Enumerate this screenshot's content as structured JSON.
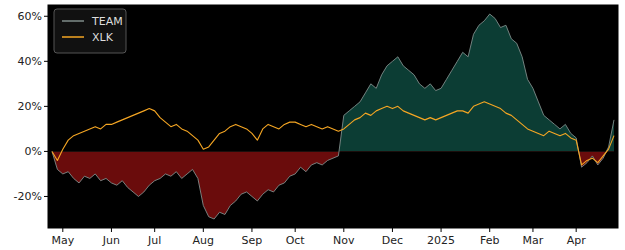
{
  "chart_data": {
    "type": "line",
    "categories": [
      null,
      null,
      "May",
      null,
      null,
      null,
      null,
      null,
      null,
      null,
      null,
      "Jun",
      null,
      null,
      null,
      null,
      null,
      null,
      null,
      "Jul",
      null,
      null,
      null,
      null,
      null,
      null,
      null,
      null,
      "Aug",
      null,
      null,
      null,
      null,
      null,
      null,
      null,
      null,
      "Sep",
      null,
      null,
      null,
      null,
      null,
      null,
      null,
      "Oct",
      null,
      null,
      null,
      null,
      null,
      null,
      null,
      null,
      "Nov",
      null,
      null,
      null,
      null,
      null,
      null,
      null,
      null,
      "Dec",
      null,
      null,
      null,
      null,
      null,
      null,
      null,
      null,
      "2025",
      null,
      null,
      null,
      null,
      null,
      null,
      null,
      null,
      "Feb",
      null,
      null,
      null,
      null,
      null,
      null,
      null,
      "Mar",
      null,
      null,
      null,
      null,
      null,
      null,
      null,
      "Apr",
      null,
      null,
      null,
      null,
      null,
      null,
      null
    ],
    "series": [
      {
        "name": "TEAM",
        "color": "#7f8c8a",
        "values": [
          0,
          -8,
          -10,
          -9,
          -12,
          -14,
          -11,
          -12,
          -10,
          -13,
          -12,
          -14,
          -15,
          -13,
          -16,
          -18,
          -20,
          -18,
          -15,
          -13,
          -12,
          -10,
          -11,
          -9,
          -12,
          -10,
          -8,
          -12,
          -24,
          -29,
          -30,
          -27,
          -28,
          -24,
          -22,
          -19,
          -18,
          -20,
          -22,
          -19,
          -17,
          -18,
          -15,
          -14,
          -11,
          -10,
          -7,
          -9,
          -6,
          -5,
          -6,
          -4,
          -3,
          -2,
          16,
          18,
          20,
          22,
          26,
          30,
          28,
          34,
          38,
          40,
          42,
          38,
          36,
          34,
          30,
          28,
          30,
          27,
          28,
          32,
          36,
          40,
          44,
          42,
          52,
          56,
          58,
          61,
          59,
          55,
          56,
          50,
          48,
          42,
          32,
          28,
          22,
          16,
          14,
          12,
          10,
          12,
          8,
          6,
          -7,
          -5,
          -2,
          -6,
          -3,
          2,
          14
        ]
      },
      {
        "name": "XLK",
        "color": "#f5a623",
        "values": [
          0,
          -4,
          1,
          5,
          7,
          8,
          9,
          10,
          11,
          10,
          12,
          12,
          13,
          14,
          15,
          16,
          17,
          18,
          19,
          18,
          15,
          13,
          11,
          12,
          10,
          9,
          7,
          5,
          1,
          2,
          5,
          8,
          9,
          11,
          12,
          11,
          10,
          8,
          5,
          10,
          12,
          11,
          10,
          12,
          13,
          13,
          12,
          11,
          12,
          11,
          10,
          11,
          10,
          9,
          10,
          12,
          14,
          15,
          17,
          16,
          18,
          19,
          20,
          19,
          20,
          18,
          17,
          16,
          15,
          14,
          15,
          14,
          15,
          16,
          17,
          18,
          18,
          17,
          20,
          21,
          22,
          21,
          20,
          19,
          17,
          16,
          14,
          12,
          10,
          9,
          8,
          7,
          9,
          8,
          7,
          8,
          6,
          5,
          -6,
          -4,
          -3,
          -5,
          -2,
          1,
          7
        ]
      }
    ],
    "ylim": [
      -34,
      65
    ],
    "yticks": [
      {
        "value": -20,
        "label": "-20%"
      },
      {
        "value": 0,
        "label": "0%"
      },
      {
        "value": 20,
        "label": "20%"
      },
      {
        "value": 40,
        "label": "40%"
      },
      {
        "value": 60,
        "label": "60%"
      }
    ],
    "grid": false,
    "legend": "upper-left"
  }
}
